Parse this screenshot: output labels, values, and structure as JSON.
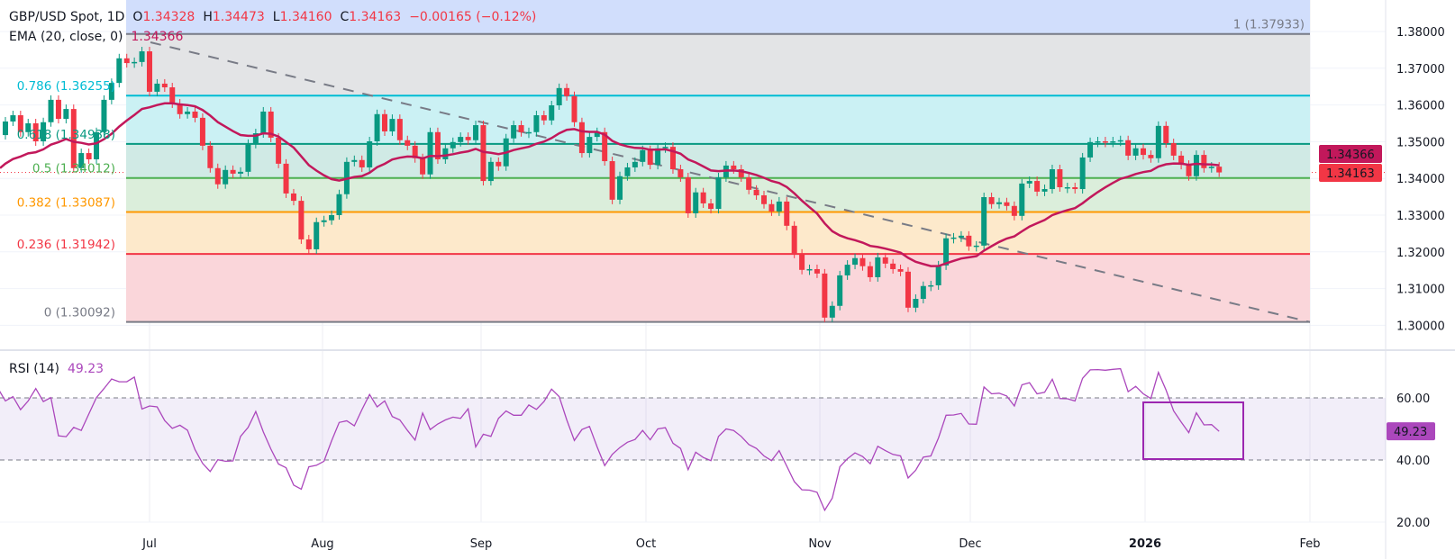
{
  "header": {
    "symbol": "GBP/USD Spot, 1D",
    "o_label": "O",
    "o": "1.34328",
    "h_label": "H",
    "h": "1.34473",
    "l_label": "L",
    "l": "1.34160",
    "c_label": "C",
    "c": "1.34163",
    "change": "−0.00165 (−0.12%)"
  },
  "ema_legend": {
    "label": "EMA (20, close, 0)",
    "value": "1.34366"
  },
  "rsi_legend": {
    "label": "RSI (14)",
    "value": "49.23"
  },
  "price_axis": [
    "1.38000",
    "1.37000",
    "1.36000",
    "1.35000",
    "1.34000",
    "1.33000",
    "1.32000",
    "1.31000",
    "1.30000"
  ],
  "rsi_axis": [
    "60.00",
    "40.00",
    "20.00"
  ],
  "time_axis": [
    "Jul",
    "Aug",
    "Sep",
    "Oct",
    "Nov",
    "Dec",
    "2026",
    "Feb"
  ],
  "badges": {
    "ema": "1.34366",
    "close": "1.34163",
    "rsi": "49.23"
  },
  "colors": {
    "up": "#089981",
    "down": "#f23645",
    "ema": "#c2185b",
    "rsi": "#ab47bc",
    "rsi_highlight_box": "#9c27b0",
    "trendline": "#787b86"
  },
  "fib_levels": [
    {
      "label": "1 (1.37933)",
      "price": 1.37933,
      "color": "#787b86",
      "fill": "#e3e4e6"
    },
    {
      "label": "0.786 (1.36255)",
      "price": 1.36255,
      "color": "#00bcd4",
      "fill": "#cbf1f4"
    },
    {
      "label": "0.618 (1.34938)",
      "price": 1.34938,
      "color": "#089981",
      "fill": "#d0eae5"
    },
    {
      "label": "0.5 (1.34012)",
      "price": 1.34012,
      "color": "#4caf50",
      "fill": "#dbeedb"
    },
    {
      "label": "0.382 (1.33087)",
      "price": 1.33087,
      "color": "#ff9800",
      "fill": "#fde9cb"
    },
    {
      "label": "0.236 (1.31942)",
      "price": 1.31942,
      "color": "#f23645",
      "fill": "#fad6da"
    },
    {
      "label": "0 (1.30092)",
      "price": 1.30092,
      "color": "#787b86",
      "fill": null
    }
  ],
  "chart_data": {
    "type": "candlestick",
    "title": "GBP/USD Spot, 1D",
    "ylim": [
      1.3,
      1.38
    ],
    "rsi_ylim": [
      20,
      60
    ],
    "rsi_band": [
      40,
      60
    ],
    "grid": true,
    "first_open": 1.3518,
    "closes": [
      1.3555,
      1.3572,
      1.3526,
      1.355,
      1.3501,
      1.3553,
      1.3614,
      1.3562,
      1.3589,
      1.3428,
      1.3469,
      1.3452,
      1.3526,
      1.3614,
      1.366,
      1.3727,
      1.3714,
      1.3717,
      1.3746,
      1.3636,
      1.3658,
      1.3648,
      1.3604,
      1.3575,
      1.3582,
      1.3565,
      1.3489,
      1.3428,
      1.3384,
      1.3423,
      1.3413,
      1.3418,
      1.3494,
      1.3523,
      1.3582,
      1.3511,
      1.344,
      1.3359,
      1.3339,
      1.3234,
      1.3207,
      1.3281,
      1.3286,
      1.33,
      1.3357,
      1.3445,
      1.345,
      1.343,
      1.3501,
      1.3575,
      1.3528,
      1.3562,
      1.3504,
      1.3489,
      1.3455,
      1.3411,
      1.3526,
      1.3452,
      1.3482,
      1.3499,
      1.3513,
      1.3504,
      1.3545,
      1.3393,
      1.3445,
      1.3433,
      1.3509,
      1.3545,
      1.3526,
      1.3526,
      1.3572,
      1.3558,
      1.3599,
      1.3646,
      1.3624,
      1.3553,
      1.3469,
      1.3513,
      1.3526,
      1.3447,
      1.3342,
      1.3406,
      1.343,
      1.3445,
      1.3477,
      1.3437,
      1.3482,
      1.3486,
      1.3425,
      1.3403,
      1.3305,
      1.3362,
      1.3332,
      1.3317,
      1.3403,
      1.3435,
      1.3425,
      1.3403,
      1.3369,
      1.3354,
      1.333,
      1.331,
      1.3337,
      1.3271,
      1.3195,
      1.3151,
      1.3153,
      1.3141,
      1.3021,
      1.3053,
      1.3136,
      1.3165,
      1.3183,
      1.3161,
      1.3131,
      1.3185,
      1.3168,
      1.3153,
      1.3146,
      1.3048,
      1.3072,
      1.3107,
      1.3109,
      1.3163,
      1.3237,
      1.3239,
      1.3244,
      1.3215,
      1.3217,
      1.3349,
      1.333,
      1.3335,
      1.3325,
      1.3298,
      1.3386,
      1.3393,
      1.3364,
      1.3371,
      1.3425,
      1.3376,
      1.3376,
      1.3371,
      1.3457,
      1.3499,
      1.3501,
      1.3499,
      1.3501,
      1.3504,
      1.3462,
      1.3482,
      1.3464,
      1.3455,
      1.3543,
      1.3496,
      1.3462,
      1.3437,
      1.3406,
      1.3464,
      1.3428,
      1.3432,
      1.34163
    ],
    "ema_period": 20,
    "rsi_period": 14,
    "rsi": [
      61.1,
      62.3,
      63.1,
      59.0,
      60.4,
      56.2,
      59.0,
      63.0,
      58.8,
      60.1,
      47.8,
      47.5,
      50.5,
      49.5,
      54.8,
      60.1,
      63.0,
      66.1,
      65.2,
      65.2,
      66.7,
      56.4,
      57.4,
      57.1,
      52.7,
      50.2,
      51.2,
      49.6,
      43.3,
      38.9,
      36.3,
      40.1,
      39.6,
      39.7,
      47.6,
      50.5,
      55.6,
      49.0,
      43.5,
      38.7,
      37.5,
      31.9,
      30.6,
      37.8,
      38.3,
      39.6,
      46.2,
      52.1,
      52.6,
      51.0,
      56.2,
      61.1,
      57.1,
      59.0,
      54.0,
      52.9,
      49.5,
      46.4,
      55.1,
      49.8,
      51.6,
      52.9,
      53.8,
      53.4,
      56.5,
      44.2,
      48.3,
      47.6,
      53.4,
      55.8,
      54.4,
      54.4,
      57.7,
      56.3,
      58.8,
      62.8,
      60.4,
      52.9,
      46.3,
      49.8,
      50.8,
      44.2,
      38.2,
      41.8,
      44.0,
      45.7,
      46.6,
      49.5,
      46.5,
      50.0,
      50.4,
      45.4,
      43.7,
      36.9,
      42.5,
      40.8,
      39.8,
      47.6,
      50.0,
      49.5,
      47.6,
      45.0,
      43.7,
      41.3,
      39.8,
      43.0,
      38.0,
      33.0,
      30.4,
      30.3,
      29.6,
      23.8,
      27.7,
      37.8,
      40.4,
      42.3,
      41.1,
      38.8,
      44.4,
      43.0,
      41.8,
      41.3,
      34.2,
      36.7,
      40.9,
      41.3,
      47.1,
      54.4,
      54.5,
      55.0,
      51.6,
      51.5,
      63.5,
      61.3,
      61.5,
      60.6,
      57.4,
      64.2,
      64.9,
      61.3,
      61.8,
      66.0,
      59.8,
      59.7,
      59.0,
      66.3,
      69.0,
      69.1,
      68.9,
      69.2,
      69.4,
      62.0,
      63.7,
      61.3,
      59.8,
      68.2,
      62.5,
      55.8,
      52.2,
      48.8,
      55.2,
      51.3,
      51.4,
      49.23
    ]
  }
}
